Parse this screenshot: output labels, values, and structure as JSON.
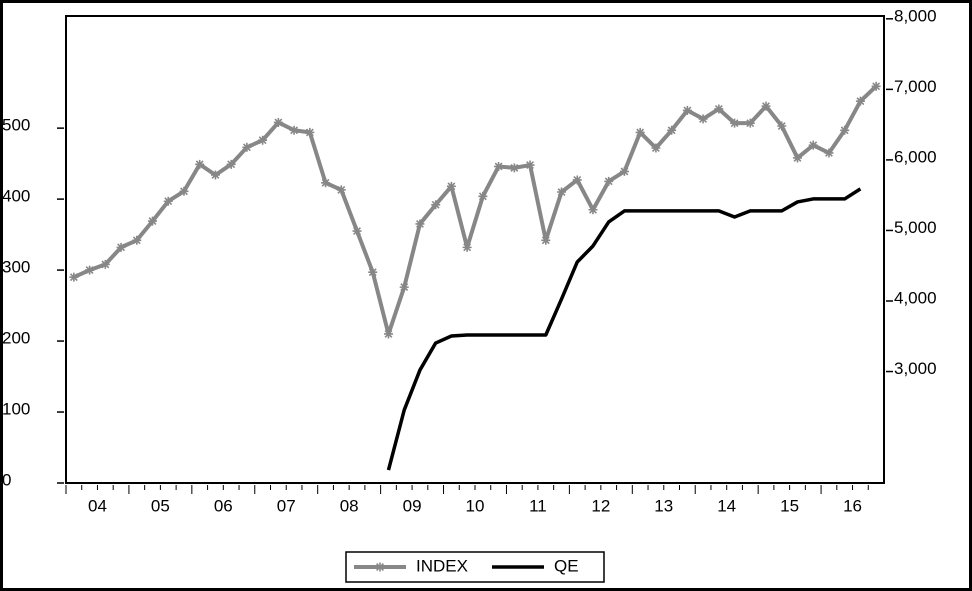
{
  "chart_data": {
    "type": "line",
    "categories": [
      null,
      "04",
      null,
      null,
      null,
      "05",
      null,
      null,
      null,
      "06",
      null,
      null,
      null,
      "07",
      null,
      null,
      null,
      "08",
      null,
      null,
      null,
      "09",
      null,
      null,
      null,
      "10",
      null,
      null,
      null,
      "11",
      null,
      null,
      null,
      "12",
      null,
      null,
      null,
      "13",
      null,
      null,
      null,
      "14",
      null,
      null,
      null,
      "15",
      null,
      null,
      null,
      "16",
      null,
      null
    ],
    "series": [
      {
        "name": "INDEX",
        "color": "#878787",
        "axis": "y",
        "values": [
          290,
          300,
          308,
          332,
          342,
          369,
          397,
          411,
          449,
          434,
          449,
          473,
          483,
          508,
          497,
          494,
          423,
          413,
          355,
          297,
          210,
          276,
          365,
          392,
          418,
          332,
          404,
          446,
          444,
          448,
          342,
          410,
          427,
          385,
          425,
          439,
          494,
          472,
          497,
          525,
          513,
          527,
          507,
          507,
          531,
          503,
          458,
          476,
          465,
          497,
          538,
          559
        ]
      },
      {
        "name": "QE",
        "color": "#000000",
        "axis": "y2",
        "values": [
          null,
          null,
          null,
          null,
          null,
          null,
          null,
          null,
          null,
          null,
          null,
          null,
          null,
          null,
          null,
          null,
          null,
          null,
          null,
          null,
          1603,
          2454,
          3021,
          3404,
          3504,
          3518,
          3518,
          3518,
          3518,
          3518,
          3518,
          4028,
          4553,
          4780,
          5121,
          5277,
          5277,
          5277,
          5277,
          5277,
          5277,
          5277,
          5191,
          5277,
          5277,
          5277,
          5404,
          5447,
          5447,
          5447,
          5589,
          null
        ]
      }
    ],
    "ylim": [
      0,
      658
    ],
    "yticks": [
      0,
      100,
      200,
      300,
      400,
      500
    ],
    "y2lim": [
      1420,
      8040
    ],
    "y2ticks": [
      {
        "value": 3000,
        "label": "3,000"
      },
      {
        "value": 4000,
        "label": "4,000"
      },
      {
        "value": 5000,
        "label": "5,000"
      },
      {
        "value": 6000,
        "label": "6,000"
      },
      {
        "value": 7000,
        "label": "7,000"
      },
      {
        "value": 8000,
        "label": "8,000"
      }
    ],
    "legend": "bottom"
  }
}
